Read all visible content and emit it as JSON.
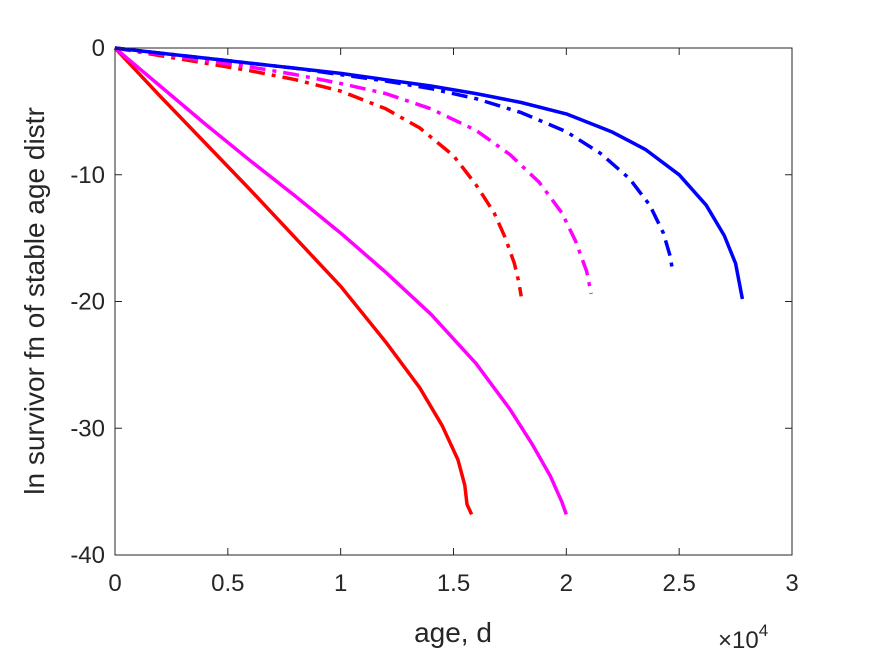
{
  "chart_data": {
    "type": "line",
    "xlabel": "age, d",
    "ylabel": "ln survivor fn of stable age distr",
    "x_exponent_label": {
      "base": "×10",
      "power": "4"
    },
    "xlim": [
      0,
      30000
    ],
    "ylim": [
      -40,
      0
    ],
    "x_ticks": [
      0,
      5000,
      10000,
      15000,
      20000,
      25000,
      30000
    ],
    "x_tick_labels": [
      "0",
      "0.5",
      "1",
      "1.5",
      "2",
      "2.5",
      "3"
    ],
    "y_ticks": [
      0,
      -10,
      -20,
      -30,
      -40
    ],
    "y_tick_labels": [
      "0",
      "-10",
      "-20",
      "-30",
      "-40"
    ],
    "grid": false,
    "series": [
      {
        "color": "#ff0000",
        "dash": "solid",
        "x": [
          0,
          2000,
          4000,
          6000,
          8000,
          10000,
          12000,
          13500,
          14500,
          15200,
          15500,
          15600,
          15800
        ],
        "y": [
          0,
          -3.8,
          -7.5,
          -11.2,
          -15.0,
          -18.8,
          -23.2,
          -26.8,
          -29.8,
          -32.5,
          -34.5,
          -36.0,
          -36.8
        ]
      },
      {
        "color": "#ff00ff",
        "dash": "solid",
        "x": [
          0,
          2000,
          4000,
          6000,
          8000,
          10000,
          12000,
          14000,
          16000,
          17500,
          18500,
          19300,
          19800,
          20000
        ],
        "y": [
          0,
          -3.0,
          -6.0,
          -8.9,
          -11.7,
          -14.6,
          -17.7,
          -21.0,
          -24.9,
          -28.5,
          -31.3,
          -33.8,
          -35.8,
          -36.8
        ]
      },
      {
        "color": "#ff0000",
        "dash": "dashdot",
        "x": [
          0,
          2000,
          4000,
          6000,
          8000,
          10000,
          12000,
          13500,
          15000,
          16000,
          16800,
          17300,
          17700,
          17900,
          18000
        ],
        "y": [
          0,
          -0.6,
          -1.2,
          -1.8,
          -2.5,
          -3.4,
          -4.8,
          -6.3,
          -8.5,
          -10.8,
          -13.0,
          -15.0,
          -17.0,
          -18.5,
          -19.6
        ]
      },
      {
        "color": "#ff00ff",
        "dash": "dashdot",
        "x": [
          0,
          2000,
          4000,
          6000,
          8000,
          10000,
          12000,
          14000,
          16000,
          17500,
          18800,
          19800,
          20400,
          20900,
          21100
        ],
        "y": [
          0,
          -0.5,
          -1.0,
          -1.5,
          -2.1,
          -2.8,
          -3.6,
          -4.8,
          -6.5,
          -8.4,
          -10.6,
          -13.0,
          -15.2,
          -17.6,
          -19.4
        ]
      },
      {
        "color": "#0000ff",
        "dash": "dashdot",
        "x": [
          0,
          2000,
          4000,
          6000,
          8000,
          10000,
          12000,
          14000,
          16000,
          18000,
          20000,
          21500,
          22800,
          23700,
          24300,
          24600,
          24700
        ],
        "y": [
          0,
          -0.4,
          -0.8,
          -1.2,
          -1.6,
          -2.1,
          -2.6,
          -3.2,
          -4.0,
          -5.1,
          -6.6,
          -8.3,
          -10.3,
          -12.4,
          -14.6,
          -16.4,
          -17.5
        ]
      },
      {
        "color": "#0000ff",
        "dash": "solid",
        "x": [
          0,
          2000,
          4000,
          6000,
          8000,
          10000,
          12000,
          14000,
          16000,
          18000,
          20000,
          22000,
          23500,
          25000,
          26200,
          27000,
          27500,
          27800
        ],
        "y": [
          0,
          -0.4,
          -0.8,
          -1.2,
          -1.6,
          -2.0,
          -2.5,
          -3.0,
          -3.6,
          -4.3,
          -5.2,
          -6.6,
          -8.0,
          -10.0,
          -12.4,
          -14.8,
          -17.0,
          -19.8
        ]
      }
    ]
  }
}
